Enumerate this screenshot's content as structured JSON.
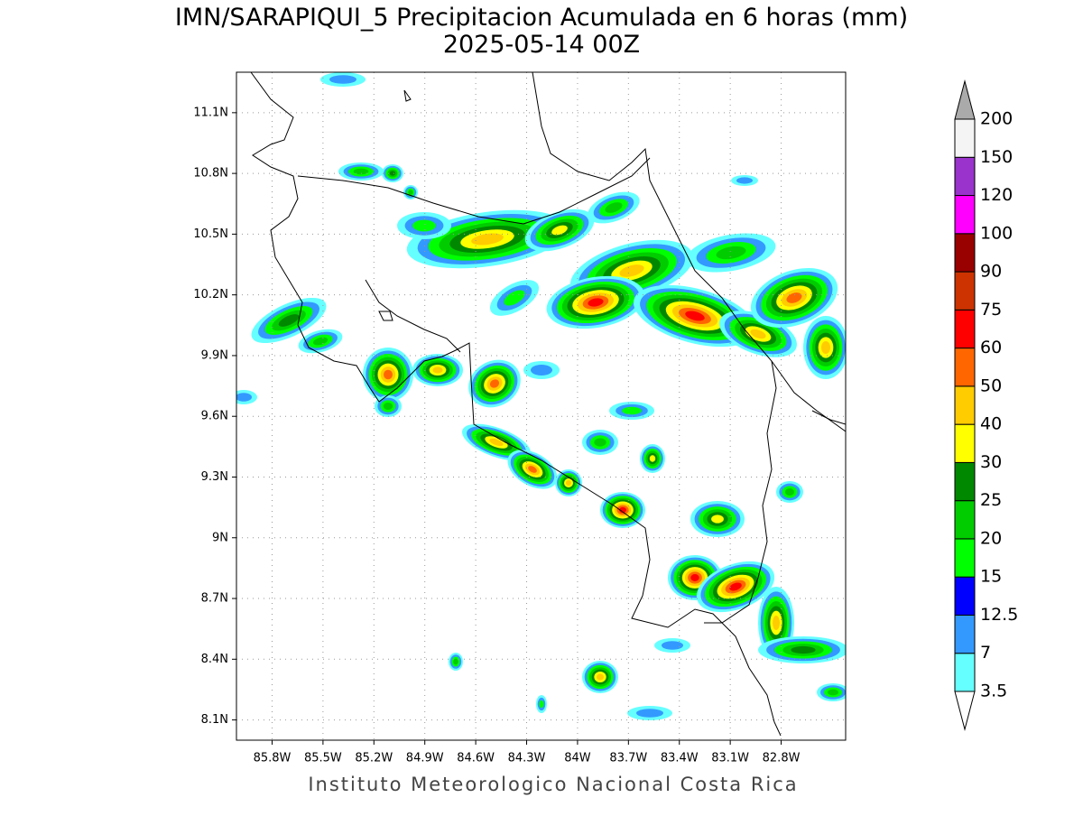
{
  "title": "IMN/SARAPIQUI_5 Precipitacion Acumulada en 6 horas (mm)",
  "subtitle": "2025-05-14 00Z",
  "footer": "Instituto Meteorologico Nacional Costa Rica",
  "map": {
    "xlim": [
      -86.01,
      -82.42
    ],
    "ylim": [
      8.0,
      11.3
    ],
    "grid": true,
    "xticks": [
      {
        "value": -85.8,
        "label": "85.8W"
      },
      {
        "value": -85.5,
        "label": "85.5W"
      },
      {
        "value": -85.2,
        "label": "85.2W"
      },
      {
        "value": -84.9,
        "label": "84.9W"
      },
      {
        "value": -84.6,
        "label": "84.6W"
      },
      {
        "value": -84.3,
        "label": "84.3W"
      },
      {
        "value": -84.0,
        "label": "84W"
      },
      {
        "value": -83.7,
        "label": "83.7W"
      },
      {
        "value": -83.4,
        "label": "83.4W"
      },
      {
        "value": -83.1,
        "label": "83.1W"
      },
      {
        "value": -82.8,
        "label": "82.8W"
      }
    ],
    "yticks": [
      {
        "value": 8.1,
        "label": "8.1N"
      },
      {
        "value": 8.4,
        "label": "8.4N"
      },
      {
        "value": 8.7,
        "label": "8.7N"
      },
      {
        "value": 9.0,
        "label": "9N"
      },
      {
        "value": 9.3,
        "label": "9.3N"
      },
      {
        "value": 9.6,
        "label": "9.6N"
      },
      {
        "value": 9.9,
        "label": "9.9N"
      },
      {
        "value": 10.2,
        "label": "10.2N"
      },
      {
        "value": 10.5,
        "label": "10.5N"
      },
      {
        "value": 10.8,
        "label": "10.8N"
      },
      {
        "value": 11.1,
        "label": "11.1N"
      }
    ]
  },
  "colorbar": {
    "levels": [
      3.5,
      7,
      12.5,
      15,
      20,
      25,
      30,
      40,
      50,
      60,
      75,
      90,
      100,
      120,
      150,
      200
    ],
    "colors": [
      "#ffffff",
      "#66ffff",
      "#3399ff",
      "#0000ff",
      "#00ff00",
      "#00cc00",
      "#008800",
      "#ffff00",
      "#ffcc00",
      "#ff6600",
      "#ff0000",
      "#cc3300",
      "#990000",
      "#ff00ff",
      "#9933cc",
      "#f4f4f4",
      "#aaaaaa"
    ]
  }
}
